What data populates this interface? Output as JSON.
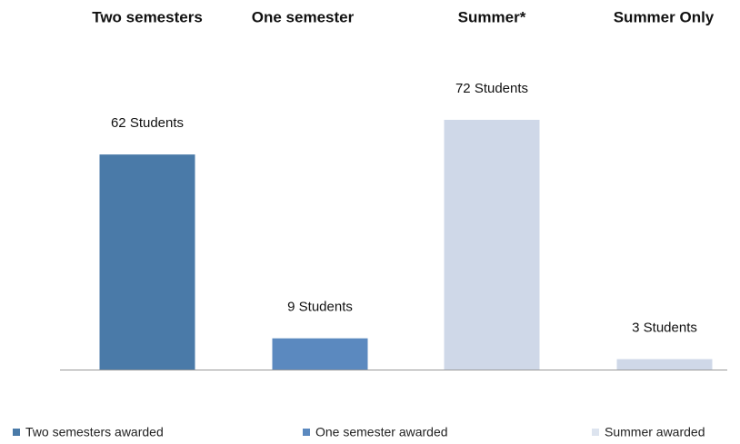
{
  "chart_data": {
    "type": "bar",
    "categories": [
      "Two semesters",
      "One semester",
      "Summer*",
      "Summer Only"
    ],
    "values": [
      62,
      9,
      72,
      3
    ],
    "value_labels": [
      "62 Students",
      "9 Students",
      "72 Students",
      "3 Students"
    ],
    "colors": [
      "#4a7aa8",
      "#5b89bf",
      "#cfd8e8",
      "#cfd8e8"
    ],
    "legend": [
      {
        "name": "Two semesters awarded",
        "color": "#4a7aa8"
      },
      {
        "name": "One semester awarded",
        "color": "#5b89bf"
      },
      {
        "name": "Summer awarded",
        "color": "#dde4ef"
      }
    ]
  }
}
